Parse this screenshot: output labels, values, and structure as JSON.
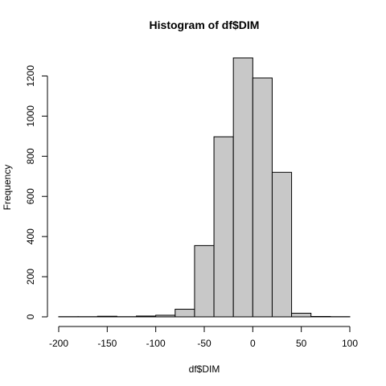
{
  "chart_data": {
    "type": "bar",
    "title": "Histogram of df$DIM",
    "xlabel": "df$DIM",
    "ylabel": "Frequency",
    "bin_edges": [
      -200,
      -180,
      -160,
      -140,
      -120,
      -100,
      -80,
      -60,
      -40,
      -20,
      0,
      20,
      40,
      60,
      80,
      100
    ],
    "values": [
      1,
      1,
      3,
      1,
      4,
      8,
      38,
      355,
      897,
      1290,
      1190,
      720,
      18,
      2,
      1
    ],
    "xlim": [
      -200,
      100
    ],
    "ylim": [
      0,
      1290
    ],
    "x_ticks": [
      -200,
      -150,
      -100,
      -50,
      0,
      50,
      100
    ],
    "y_ticks": [
      0,
      200,
      400,
      600,
      800,
      1000,
      1200
    ],
    "grid": false,
    "legend": "none",
    "bar_color": "#c8c8c8",
    "edge_color": "#000000"
  }
}
